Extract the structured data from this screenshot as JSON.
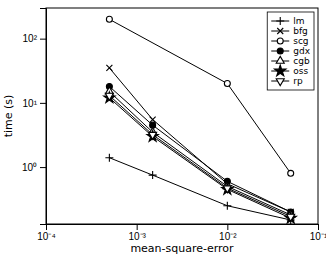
{
  "chart_data": {
    "type": "line",
    "xlabel": "mean-square-error",
    "ylabel": "time (s)",
    "log": true,
    "grid": false,
    "legend": "upper right",
    "xlim": [
      0.0001,
      0.1
    ],
    "ylim": [
      0.13,
      300
    ],
    "xticks": [
      {
        "value": 0.0001,
        "label": "10⁻⁴"
      },
      {
        "value": 0.001,
        "label": "10⁻³"
      },
      {
        "value": 0.01,
        "label": "10⁻²"
      },
      {
        "value": 0.1,
        "label": "10⁻¹"
      }
    ],
    "yticks": [
      {
        "value": 1,
        "label": "10⁰"
      },
      {
        "value": 10,
        "label": "10¹"
      },
      {
        "value": 100,
        "label": "10²"
      }
    ],
    "series": [
      {
        "name": "lm",
        "color": "#000000",
        "marker": "plus",
        "x": [
          0.0005,
          0.0015,
          0.01,
          0.05
        ],
        "values": [
          1.4,
          0.75,
          0.25,
          0.15
        ]
      },
      {
        "name": "bfg",
        "color": "#000000",
        "marker": "x",
        "x": [
          0.0005,
          0.0015,
          0.01,
          0.05
        ],
        "values": [
          35,
          5.5,
          0.55,
          0.2
        ]
      },
      {
        "name": "scg",
        "color": "#000000",
        "marker": "circle-open",
        "x": [
          0.0005,
          0.01,
          0.05
        ],
        "values": [
          200,
          20,
          0.8
        ]
      },
      {
        "name": "gdx",
        "color": "#000000",
        "marker": "circle-filled",
        "x": [
          0.0005,
          0.0015,
          0.01,
          0.05
        ],
        "values": [
          18,
          4.5,
          0.6,
          0.2
        ]
      },
      {
        "name": "cgb",
        "color": "#000000",
        "marker": "triangle-up-open",
        "x": [
          0.0005,
          0.0015,
          0.01,
          0.05
        ],
        "values": [
          15,
          3.5,
          0.5,
          0.18
        ]
      },
      {
        "name": "oss",
        "color": "#000000",
        "marker": "star-filled",
        "x": [
          0.0005,
          0.0015,
          0.01,
          0.05
        ],
        "values": [
          12,
          3.0,
          0.45,
          0.16
        ]
      },
      {
        "name": "rp",
        "color": "#000000",
        "marker": "triangle-down-open",
        "x": [
          0.0005,
          0.0015,
          0.01,
          0.05
        ],
        "values": [
          13,
          3.2,
          0.47,
          0.17
        ]
      }
    ]
  }
}
